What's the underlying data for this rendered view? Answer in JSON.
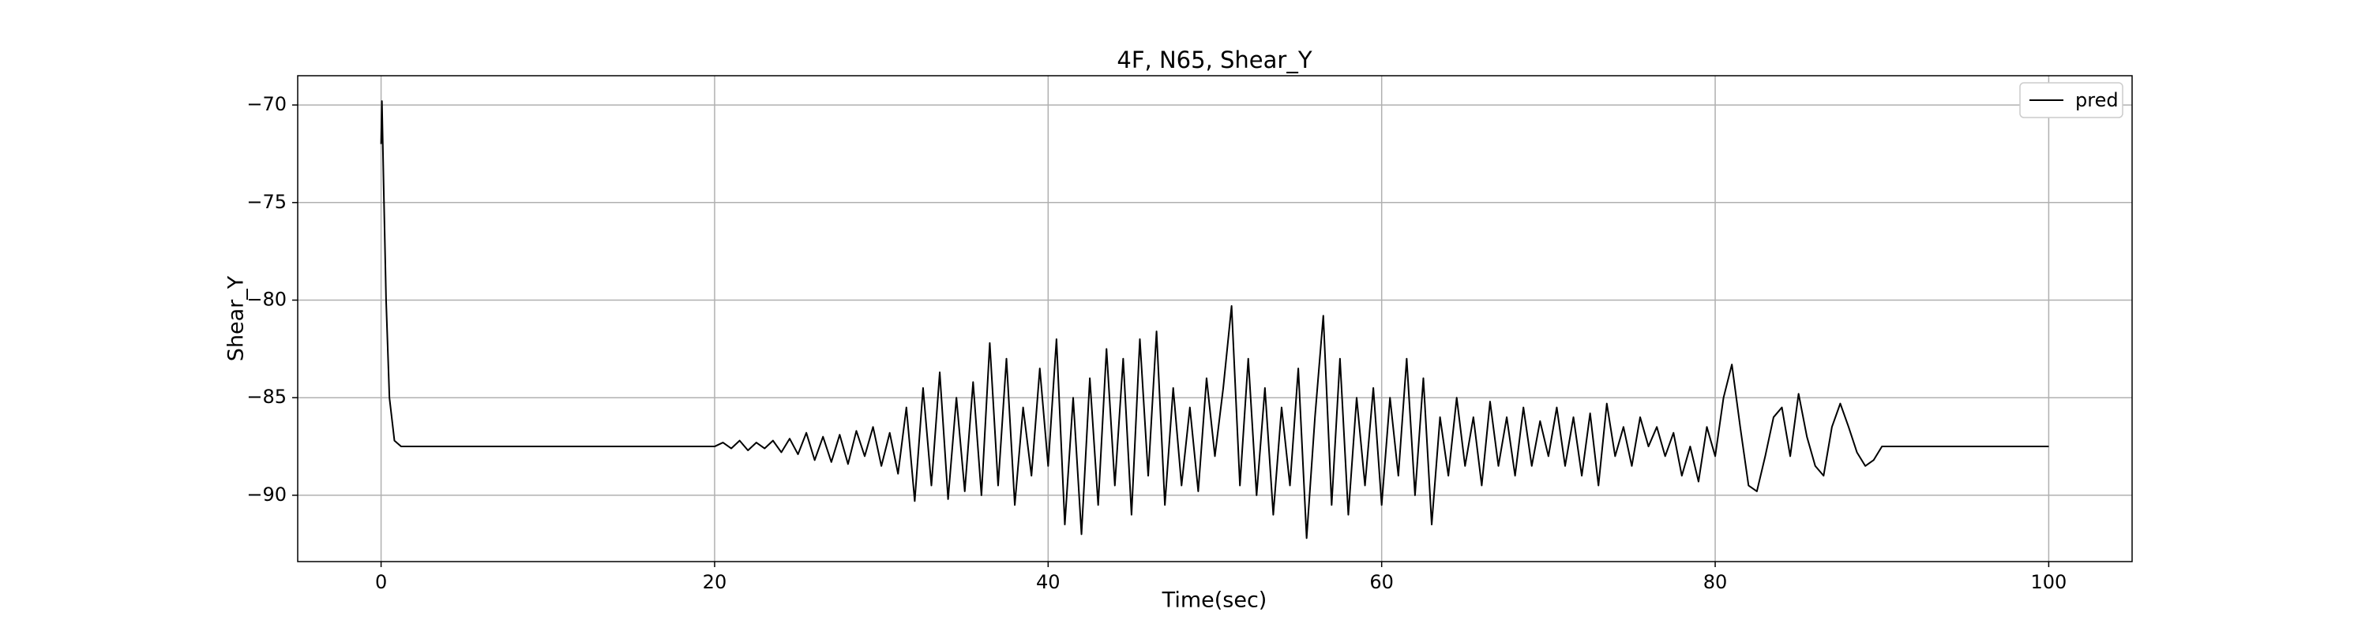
{
  "chart_data": {
    "type": "line",
    "title": "4F, N65, Shear_Y",
    "x_label": "Time(sec)",
    "y_label": "Shear_Y",
    "x": [
      0,
      0.05,
      0.15,
      0.3,
      0.5,
      0.8,
      1.2,
      10,
      20,
      20.5,
      21,
      21.5,
      22,
      22.5,
      23,
      23.5,
      24,
      24.5,
      25,
      25.5,
      26,
      26.5,
      27,
      27.5,
      28,
      28.5,
      29,
      29.5,
      30,
      30.5,
      31,
      31.5,
      32,
      32.5,
      33,
      33.5,
      34,
      34.5,
      35,
      35.5,
      36,
      36.5,
      37,
      37.5,
      38,
      38.5,
      39,
      39.5,
      40,
      40.5,
      41,
      41.5,
      42,
      42.5,
      43,
      43.5,
      44,
      44.5,
      45,
      45.5,
      46,
      46.5,
      47,
      47.5,
      48,
      48.5,
      49,
      49.5,
      50,
      50.5,
      51,
      51.5,
      52,
      52.5,
      53,
      53.5,
      54,
      54.5,
      55,
      55.5,
      56,
      56.5,
      57,
      57.5,
      58,
      58.5,
      59,
      59.5,
      60,
      60.5,
      61,
      61.5,
      62,
      62.5,
      63,
      63.5,
      64,
      64.5,
      65,
      65.5,
      66,
      66.5,
      67,
      67.5,
      68,
      68.5,
      69,
      69.5,
      70,
      70.5,
      71,
      71.5,
      72,
      72.5,
      73,
      73.5,
      74,
      74.5,
      75,
      75.5,
      76,
      76.5,
      77,
      77.5,
      78,
      78.5,
      79,
      79.5,
      80,
      80.5,
      81,
      81.5,
      82,
      82.5,
      83,
      83.5,
      84,
      84.5,
      85,
      85.5,
      86,
      86.5,
      87,
      87.5,
      88,
      88.5,
      89,
      89.5,
      90,
      100
    ],
    "series": [
      {
        "name": "pred",
        "color": "#000000",
        "values": [
          -72,
          -69.8,
          -74,
          -80,
          -85,
          -87.2,
          -87.5,
          -87.5,
          -87.5,
          -87.3,
          -87.6,
          -87.2,
          -87.7,
          -87.3,
          -87.6,
          -87.2,
          -87.8,
          -87.1,
          -87.9,
          -86.8,
          -88.2,
          -87.0,
          -88.3,
          -86.9,
          -88.4,
          -86.7,
          -88.0,
          -86.5,
          -88.5,
          -86.8,
          -88.9,
          -85.5,
          -90.3,
          -84.5,
          -89.5,
          -83.7,
          -90.2,
          -85.0,
          -89.8,
          -84.2,
          -90.0,
          -82.2,
          -89.5,
          -83.0,
          -90.5,
          -85.5,
          -89.0,
          -83.5,
          -88.5,
          -82.0,
          -91.5,
          -85.0,
          -92.0,
          -84.0,
          -90.5,
          -82.5,
          -89.5,
          -83.0,
          -91.0,
          -82.0,
          -89.0,
          -81.6,
          -90.5,
          -84.5,
          -89.5,
          -85.5,
          -89.8,
          -84.0,
          -88.0,
          -84.5,
          -80.3,
          -89.5,
          -83.0,
          -90.0,
          -84.5,
          -91.0,
          -85.5,
          -89.5,
          -83.5,
          -92.2,
          -86.0,
          -80.8,
          -90.5,
          -83.0,
          -91.0,
          -85.0,
          -89.5,
          -84.5,
          -90.5,
          -85.0,
          -89.0,
          -83.0,
          -90.0,
          -84.0,
          -91.5,
          -86.0,
          -89.0,
          -85.0,
          -88.5,
          -86.0,
          -89.5,
          -85.2,
          -88.5,
          -86.0,
          -89.0,
          -85.5,
          -88.5,
          -86.2,
          -88.0,
          -85.5,
          -88.5,
          -86.0,
          -89.0,
          -85.8,
          -89.5,
          -85.3,
          -88.0,
          -86.5,
          -88.5,
          -86.0,
          -87.5,
          -86.5,
          -88.0,
          -86.8,
          -89.0,
          -87.5,
          -89.3,
          -86.5,
          -88.0,
          -85.0,
          -83.3,
          -86.5,
          -89.5,
          -89.8,
          -88.0,
          -86.0,
          -85.5,
          -88.0,
          -84.8,
          -87.0,
          -88.5,
          -89.0,
          -86.5,
          -85.3,
          -86.5,
          -87.8,
          -88.5,
          -88.2,
          -87.5,
          -87.5
        ]
      }
    ],
    "xlim": [
      -5,
      105
    ],
    "ylim": [
      -93.4,
      -68.5
    ],
    "xticks": [
      0,
      20,
      40,
      60,
      80,
      100
    ],
    "yticks": [
      {
        "value": -90,
        "label": "−90"
      },
      {
        "value": -85,
        "label": "−85"
      },
      {
        "value": -80,
        "label": "−80"
      },
      {
        "value": -75,
        "label": "−75"
      },
      {
        "value": -70,
        "label": "−70"
      }
    ],
    "grid": true,
    "legend": "upper right"
  }
}
